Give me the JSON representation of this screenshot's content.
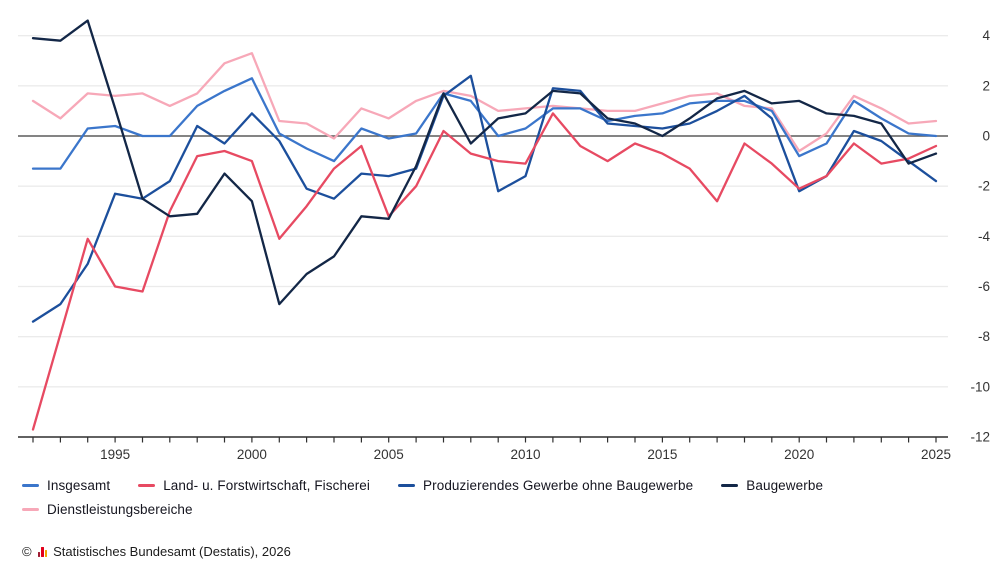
{
  "chart_data": {
    "type": "line",
    "title": "",
    "xlabel": "",
    "ylabel": "",
    "x": [
      1992,
      1993,
      1994,
      1995,
      1996,
      1997,
      1998,
      1999,
      2000,
      2001,
      2002,
      2003,
      2004,
      2005,
      2006,
      2007,
      2008,
      2009,
      2010,
      2011,
      2012,
      2013,
      2014,
      2015,
      2016,
      2017,
      2018,
      2019,
      2020,
      2021,
      2022,
      2023,
      2024,
      2025
    ],
    "x_major_ticks": [
      1995,
      2000,
      2005,
      2010,
      2015,
      2020,
      2025
    ],
    "x_tick_labels": [
      "1995",
      "2000",
      "2005",
      "2010",
      "2015",
      "2020",
      "2025"
    ],
    "ylim": [
      -12,
      4
    ],
    "y_ticks": [
      4,
      2,
      0,
      -2,
      -4,
      -6,
      -8,
      -10,
      -12
    ],
    "y_tick_labels": [
      "4",
      "2",
      "0",
      "-2",
      "-4",
      "-6",
      "-8",
      "-10",
      "-12"
    ],
    "grid": true,
    "legend_position": "bottom",
    "series": [
      {
        "name": "Insgesamt",
        "color": "#3b76cb",
        "values": [
          -1.3,
          -1.3,
          0.3,
          0.4,
          0.0,
          0.0,
          1.2,
          1.8,
          2.3,
          0.1,
          -0.5,
          -1.0,
          0.3,
          -0.1,
          0.1,
          1.7,
          1.4,
          0.0,
          0.3,
          1.1,
          1.1,
          0.6,
          0.8,
          0.9,
          1.3,
          1.4,
          1.4,
          1.0,
          -0.8,
          -0.3,
          1.4,
          0.7,
          0.1,
          0.0
        ]
      },
      {
        "name": "Land- u. Forstwirtschaft, Fischerei",
        "color": "#e74a62",
        "values": [
          -11.7,
          -7.9,
          -4.1,
          -6.0,
          -6.2,
          -3.0,
          -0.8,
          -0.6,
          -1.0,
          -4.1,
          -2.8,
          -1.3,
          -0.4,
          -3.2,
          -2.0,
          0.2,
          -0.7,
          -1.0,
          -1.1,
          0.9,
          -0.4,
          -1.0,
          -0.3,
          -0.7,
          -1.3,
          -2.6,
          -0.3,
          -1.1,
          -2.1,
          -1.6,
          -0.3,
          -1.1,
          -0.9,
          -0.4
        ]
      },
      {
        "name": "Produzierendes Gewerbe ohne Baugewerbe",
        "color": "#1c4f9c",
        "values": [
          -7.4,
          -6.7,
          -5.1,
          -2.3,
          -2.5,
          -1.8,
          0.4,
          -0.3,
          0.9,
          -0.2,
          -2.1,
          -2.5,
          -1.5,
          -1.6,
          -1.3,
          1.6,
          2.4,
          -2.2,
          -1.6,
          1.9,
          1.8,
          0.5,
          0.4,
          0.3,
          0.5,
          1.0,
          1.6,
          0.7,
          -2.2,
          -1.6,
          0.2,
          -0.2,
          -1.0,
          -1.8
        ]
      },
      {
        "name": "Baugewerbe",
        "color": "#132747",
        "values": [
          3.9,
          3.8,
          4.6,
          1.1,
          -2.5,
          -3.2,
          -3.1,
          -1.5,
          -2.6,
          -6.7,
          -5.5,
          -4.8,
          -3.2,
          -3.3,
          -1.2,
          1.7,
          -0.3,
          0.7,
          0.9,
          1.8,
          1.7,
          0.7,
          0.5,
          0.0,
          0.7,
          1.5,
          1.8,
          1.3,
          1.4,
          0.9,
          0.8,
          0.5,
          -1.1,
          -0.7
        ]
      },
      {
        "name": "Dienstleistungsbereiche",
        "color": "#f7a8b8",
        "values": [
          1.4,
          0.7,
          1.7,
          1.6,
          1.7,
          1.2,
          1.7,
          2.9,
          3.3,
          0.6,
          0.5,
          -0.1,
          1.1,
          0.7,
          1.4,
          1.8,
          1.6,
          1.0,
          1.1,
          1.2,
          1.1,
          1.0,
          1.0,
          1.3,
          1.6,
          1.7,
          1.2,
          1.1,
          -0.6,
          0.1,
          1.6,
          1.1,
          0.5,
          0.6
        ]
      }
    ],
    "colors": {
      "gridline": "#ebebeb",
      "zero_line": "#5b5b5b",
      "axis": "#2f2f2f",
      "tick_text": "#333333"
    }
  },
  "footer": {
    "copyright_prefix": "©",
    "source_label": "Statistisches Bundesamt (Destatis), 2026"
  }
}
